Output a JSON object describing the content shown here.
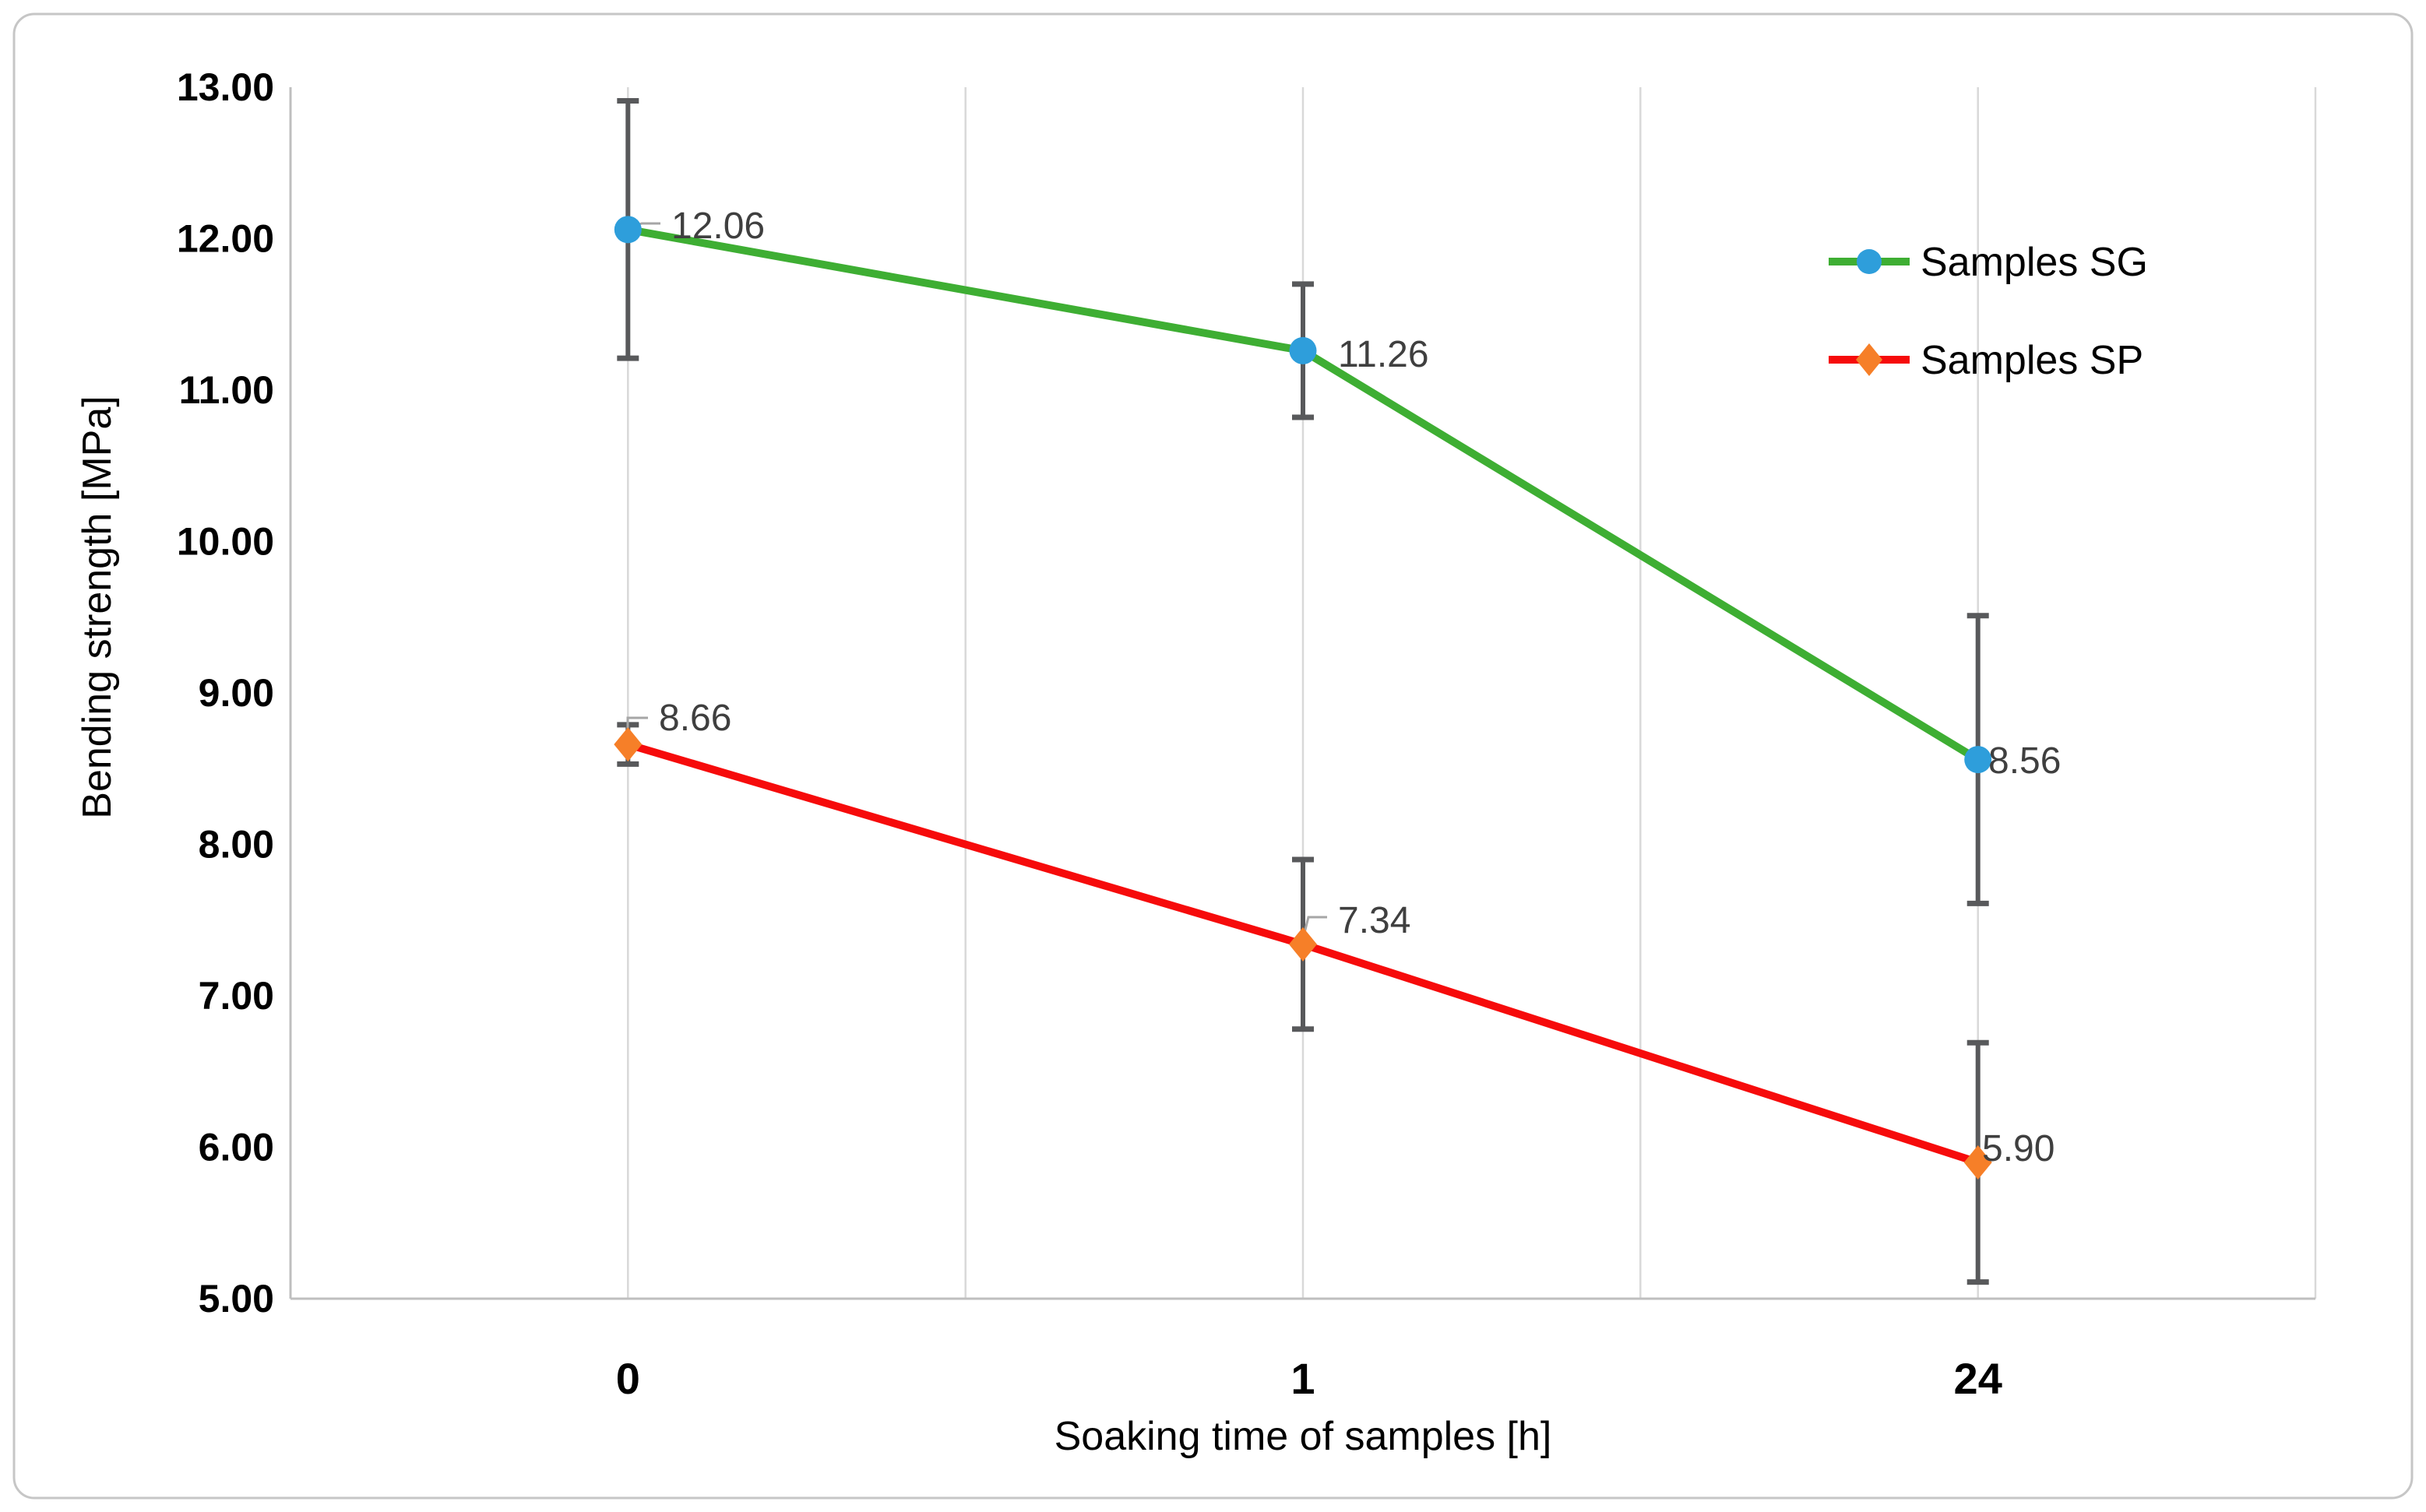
{
  "page": {
    "background": "#FFFFFF",
    "frame_border_color": "#C6C6C6"
  },
  "chart_data": {
    "type": "line",
    "title": "",
    "categories": [
      "0",
      "1",
      "24"
    ],
    "xlabel": "Soaking time of samples [h]",
    "ylabel": "Bending strength [MPa]",
    "ylim": [
      5,
      13
    ],
    "y_tick_labels": [
      "13.00",
      "12.00",
      "11.00",
      "10.00",
      "9.00",
      "8.00",
      "7.00",
      "6.00",
      "5.00"
    ],
    "grid": "vertical-only",
    "legend_position": "right-inside",
    "series": [
      {
        "name": "Samples SG",
        "values": [
          12.06,
          11.26,
          8.56
        ],
        "data_labels": [
          "12.06",
          "11.26",
          "8.56"
        ],
        "error_plus_minus": [
          0.85,
          0.44,
          0.95
        ],
        "line_color": "#3EAE33",
        "marker": "circle",
        "marker_color": "#2E9EDB"
      },
      {
        "name": "Samples SP",
        "values": [
          8.66,
          7.34,
          5.9
        ],
        "data_labels": [
          "8.66",
          "7.34",
          "5.90"
        ],
        "error_plus_minus": [
          0.13,
          0.56,
          0.79
        ],
        "line_color": "#F60B0B",
        "marker": "diamond",
        "marker_color": "#F67F28"
      }
    ],
    "error_bar_color": "#58595B",
    "gridline_color": "#D9D9D9",
    "axis_line_color": "#BFBFBF",
    "data_label_color": "#3F3F3F",
    "leader_line_color": "#A6A6A6",
    "tick_label_color": "#000000"
  }
}
